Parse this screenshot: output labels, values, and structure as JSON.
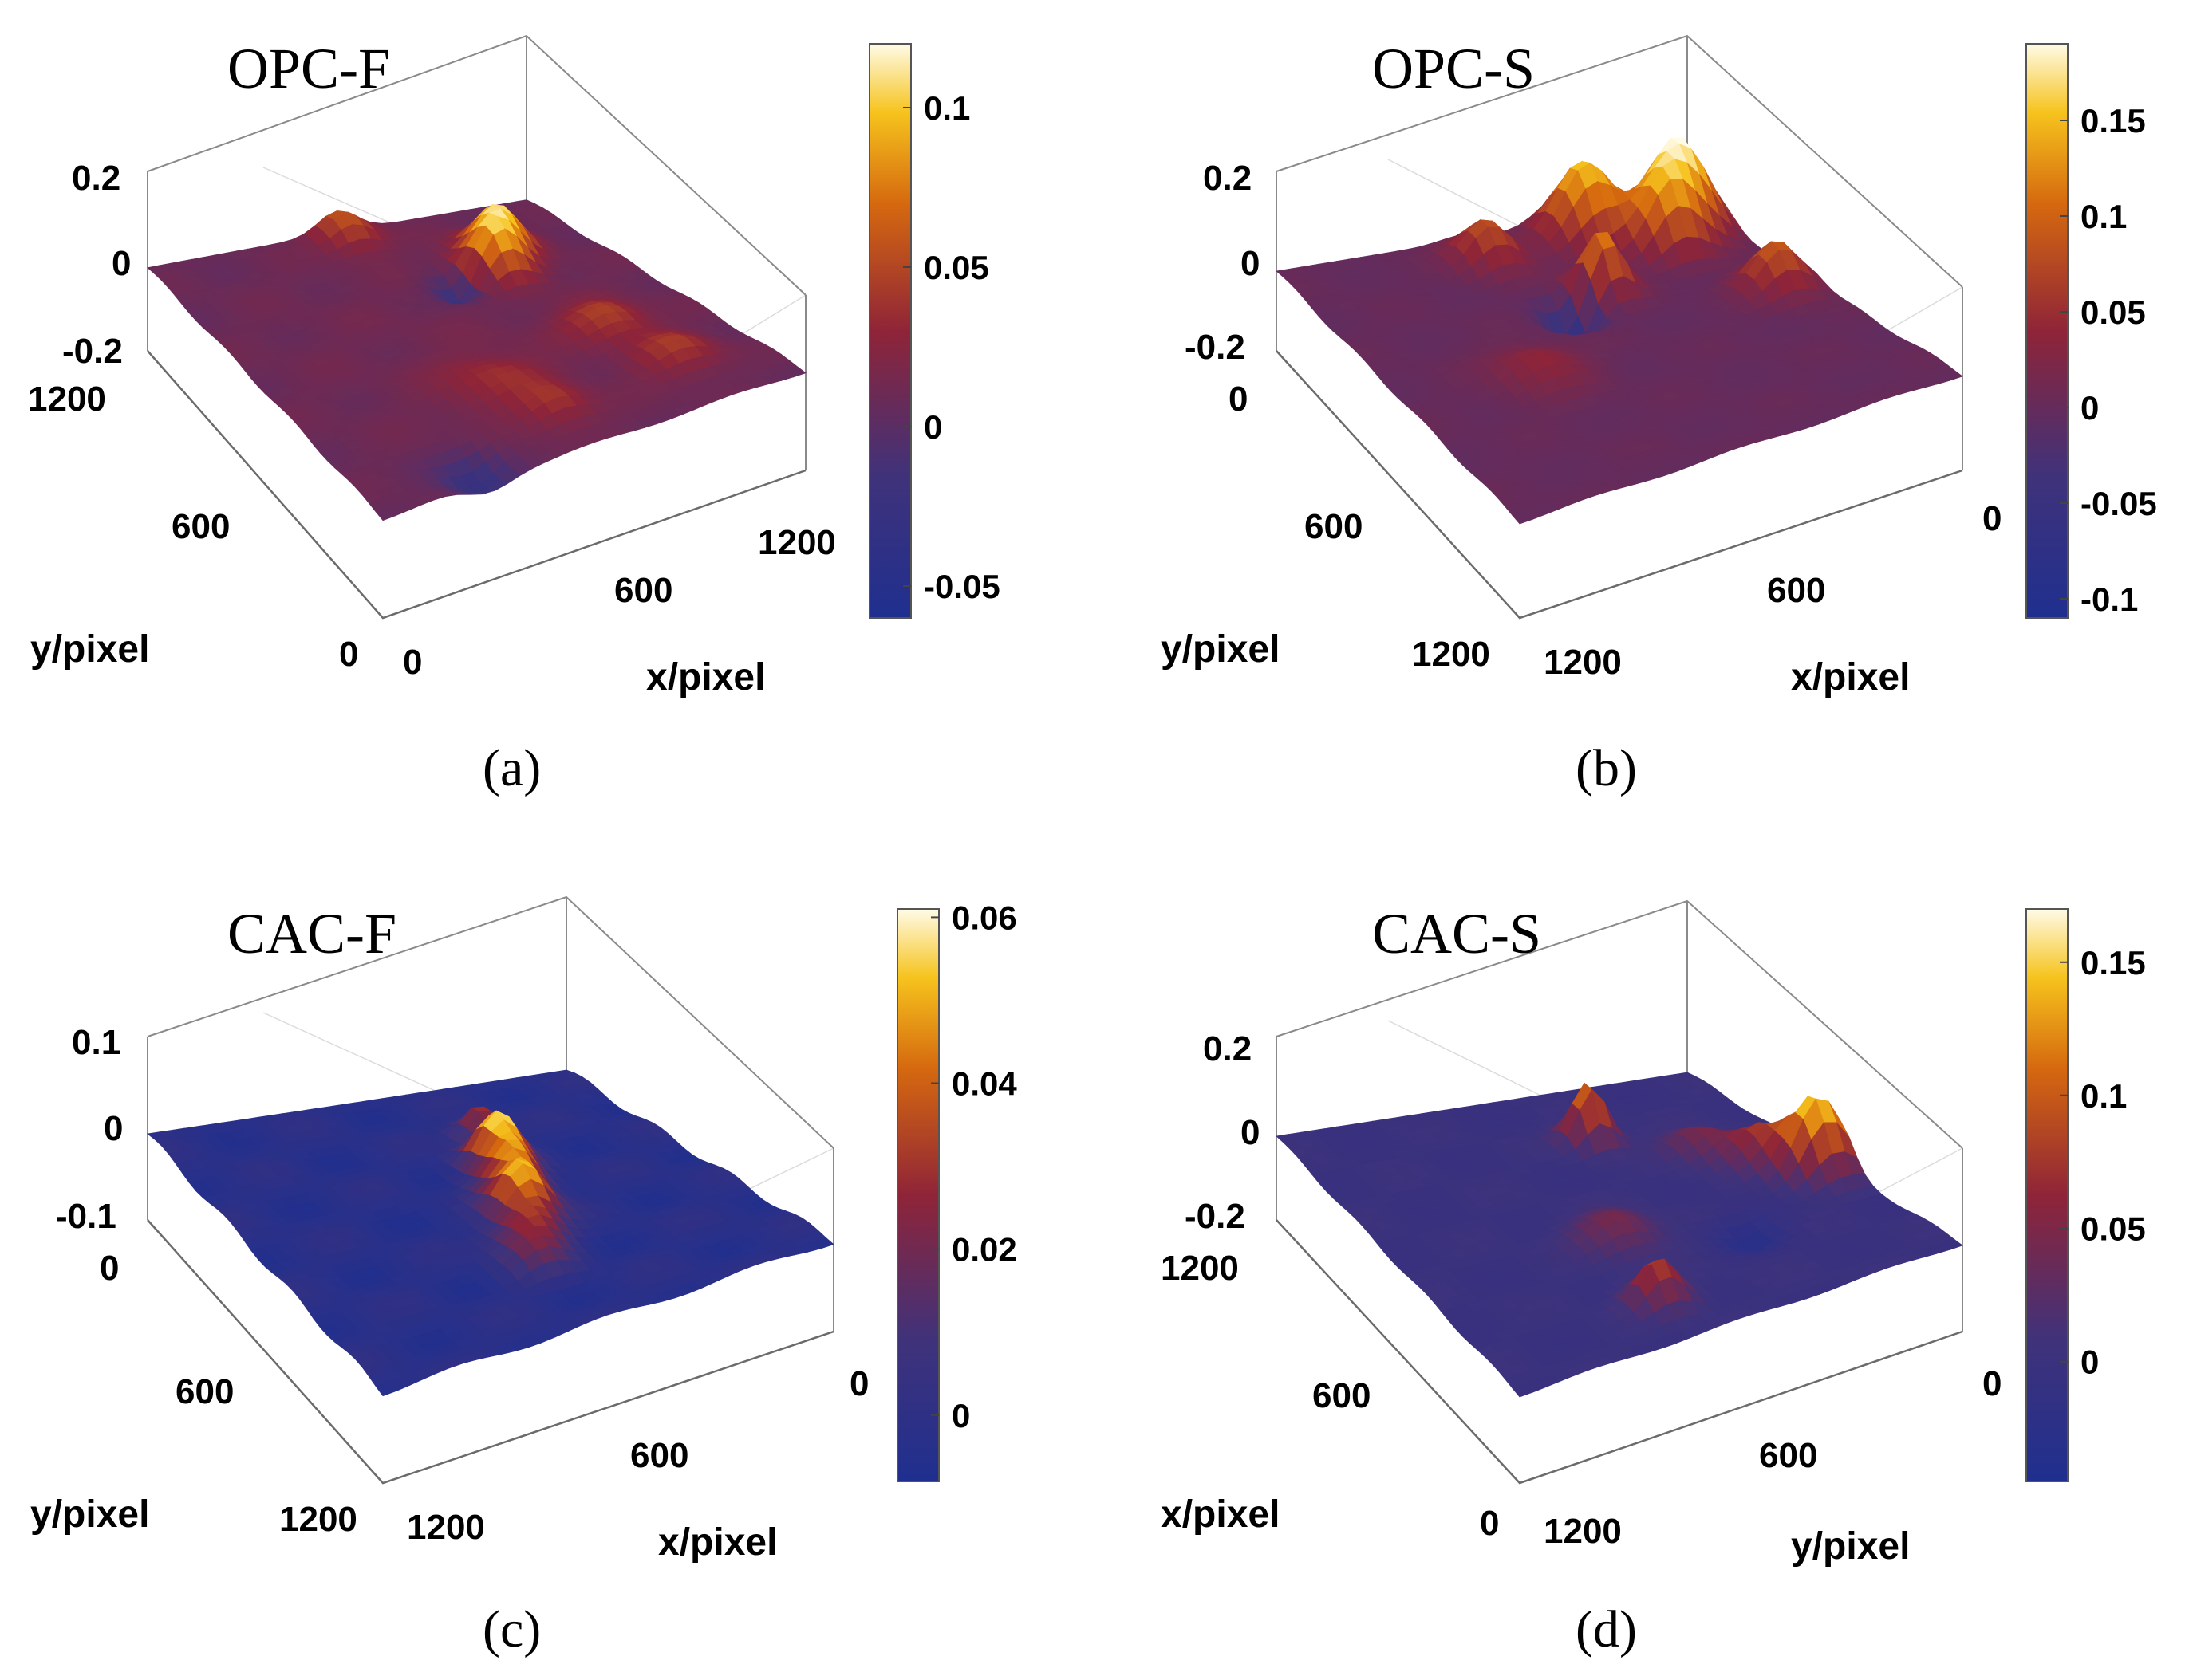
{
  "colors": {
    "map_low": "#1f2f8f",
    "map_midlow": "#40327a",
    "map_mid": "#8f2438",
    "map_midhigh": "#d5680f",
    "map_high": "#f6c31d",
    "map_top": "#fffbe6",
    "axis": "#8a8a8a",
    "text": "#111111"
  },
  "chart_data": [
    {
      "type": "surface",
      "panel": "(a)",
      "title": "OPC-F",
      "xlabel": "x/pixel",
      "ylabel": "y/pixel",
      "x_ticks": [
        "0",
        "600",
        "1200"
      ],
      "y_ticks": [
        "0",
        "600",
        "1200"
      ],
      "z_ticks": [
        "0.2",
        "0",
        "-0.2"
      ],
      "zlim": [
        -0.2,
        0.2
      ],
      "colorbar": {
        "range": [
          -0.06,
          0.12
        ],
        "ticks": [
          -0.05,
          0,
          0.05,
          0.1
        ],
        "tick_labels": [
          "-0.05",
          "0",
          "0.05",
          "0.1"
        ]
      },
      "features": [
        {
          "u": 0.5,
          "v": 0.5,
          "amp": 0.012,
          "width": 0.7
        },
        {
          "u": 0.03,
          "v": 0.5,
          "amp": 0.055,
          "width": 0.05
        },
        {
          "u": 0.6,
          "v": 0.78,
          "amp": 0.04,
          "width": 0.06
        },
        {
          "u": 0.8,
          "v": 0.82,
          "amp": 0.035,
          "width": 0.06
        },
        {
          "u": 0.28,
          "v": 0.72,
          "amp": 0.09,
          "width": 0.05
        },
        {
          "u": 0.2,
          "v": 0.78,
          "amp": 0.085,
          "width": 0.05
        },
        {
          "u": 0.3,
          "v": 0.62,
          "amp": -0.05,
          "width": 0.04
        },
        {
          "u": 0.85,
          "v": 0.5,
          "amp": 0.03,
          "width": 0.05
        },
        {
          "u": 0.95,
          "v": 0.25,
          "amp": -0.04,
          "width": 0.05
        },
        {
          "u": 0.7,
          "v": 0.45,
          "amp": 0.025,
          "width": 0.08
        }
      ]
    },
    {
      "type": "surface",
      "panel": "(b)",
      "title": "OPC-S",
      "xlabel": "x/pixel",
      "ylabel": "y/pixel",
      "x_ticks": [
        "1200",
        "600",
        "0"
      ],
      "y_ticks": [
        "0",
        "600",
        "1200"
      ],
      "z_ticks": [
        "0.2",
        "0",
        "-0.2"
      ],
      "zlim": [
        -0.2,
        0.2
      ],
      "colorbar": {
        "range": [
          -0.11,
          0.19
        ],
        "ticks": [
          -0.1,
          -0.05,
          0,
          0.05,
          0.1,
          0.15
        ],
        "tick_labels": [
          "-0.1",
          "-0.05",
          "0",
          "0.05",
          "0.1",
          "0.15"
        ]
      },
      "features": [
        {
          "u": 0.5,
          "v": 0.5,
          "amp": 0.0,
          "width": 0.7
        },
        {
          "u": 0.12,
          "v": 0.9,
          "amp": 0.19,
          "width": 0.06
        },
        {
          "u": 0.08,
          "v": 0.7,
          "amp": 0.16,
          "width": 0.06
        },
        {
          "u": 0.2,
          "v": 0.82,
          "amp": 0.12,
          "width": 0.05
        },
        {
          "u": 0.3,
          "v": 0.6,
          "amp": 0.13,
          "width": 0.04
        },
        {
          "u": 0.1,
          "v": 0.45,
          "amp": 0.09,
          "width": 0.05
        },
        {
          "u": 0.45,
          "v": 0.92,
          "amp": 0.1,
          "width": 0.05
        },
        {
          "u": 0.35,
          "v": 0.5,
          "amp": -0.08,
          "width": 0.04
        },
        {
          "u": 0.55,
          "v": 0.3,
          "amp": 0.04,
          "width": 0.07
        }
      ]
    },
    {
      "type": "surface",
      "panel": "(c)",
      "title": "CAC-F",
      "xlabel": "x/pixel",
      "ylabel": "y/pixel",
      "x_ticks": [
        "1200",
        "600",
        "0"
      ],
      "y_ticks": [
        "1200",
        "600",
        "0"
      ],
      "z_ticks": [
        "0.1",
        "0",
        "-0.1"
      ],
      "zlim": [
        -0.1,
        0.1
      ],
      "colorbar": {
        "range": [
          -0.008,
          0.061
        ],
        "ticks": [
          0,
          0.02,
          0.04,
          0.06
        ],
        "tick_labels": [
          "0",
          "0.02",
          "0.04",
          "0.06"
        ]
      },
      "features": [
        {
          "u": 0.5,
          "v": 0.5,
          "amp": -0.003,
          "width": 0.7
        },
        {
          "u": 0.35,
          "v": 0.62,
          "amp": 0.058,
          "width": 0.045
        },
        {
          "u": 0.45,
          "v": 0.6,
          "amp": 0.05,
          "width": 0.045
        },
        {
          "u": 0.55,
          "v": 0.56,
          "amp": 0.055,
          "width": 0.045
        },
        {
          "u": 0.65,
          "v": 0.52,
          "amp": 0.035,
          "width": 0.05
        },
        {
          "u": 0.22,
          "v": 0.66,
          "amp": 0.04,
          "width": 0.035
        },
        {
          "u": 0.75,
          "v": 0.48,
          "amp": 0.02,
          "width": 0.05
        }
      ]
    },
    {
      "type": "surface",
      "panel": "(d)",
      "title": "CAC-S",
      "xlabel": "x/pixel",
      "ylabel": "y/pixel",
      "x_ticks": [
        "1200",
        "600",
        "0"
      ],
      "y_ticks": [
        "1200",
        "600",
        "0"
      ],
      "z_ticks": [
        "0.2",
        "0",
        "-0.2"
      ],
      "zlim": [
        -0.2,
        0.2
      ],
      "colorbar": {
        "range": [
          -0.045,
          0.17
        ],
        "ticks": [
          0,
          0.05,
          0.1,
          0.15
        ],
        "tick_labels": [
          "0",
          "0.05",
          "0.1",
          "0.15"
        ]
      },
      "features": [
        {
          "u": 0.5,
          "v": 0.5,
          "amp": 0.0,
          "width": 0.7
        },
        {
          "u": 0.55,
          "v": 0.95,
          "amp": 0.16,
          "width": 0.05
        },
        {
          "u": 0.45,
          "v": 0.88,
          "amp": 0.07,
          "width": 0.05
        },
        {
          "u": 0.22,
          "v": 0.62,
          "amp": 0.13,
          "width": 0.035
        },
        {
          "u": 0.85,
          "v": 0.4,
          "amp": 0.09,
          "width": 0.04
        },
        {
          "u": 0.6,
          "v": 0.45,
          "amp": 0.05,
          "width": 0.06
        },
        {
          "u": 0.35,
          "v": 0.8,
          "amp": 0.05,
          "width": 0.05
        },
        {
          "u": 0.7,
          "v": 0.7,
          "amp": -0.03,
          "width": 0.05
        }
      ]
    }
  ]
}
